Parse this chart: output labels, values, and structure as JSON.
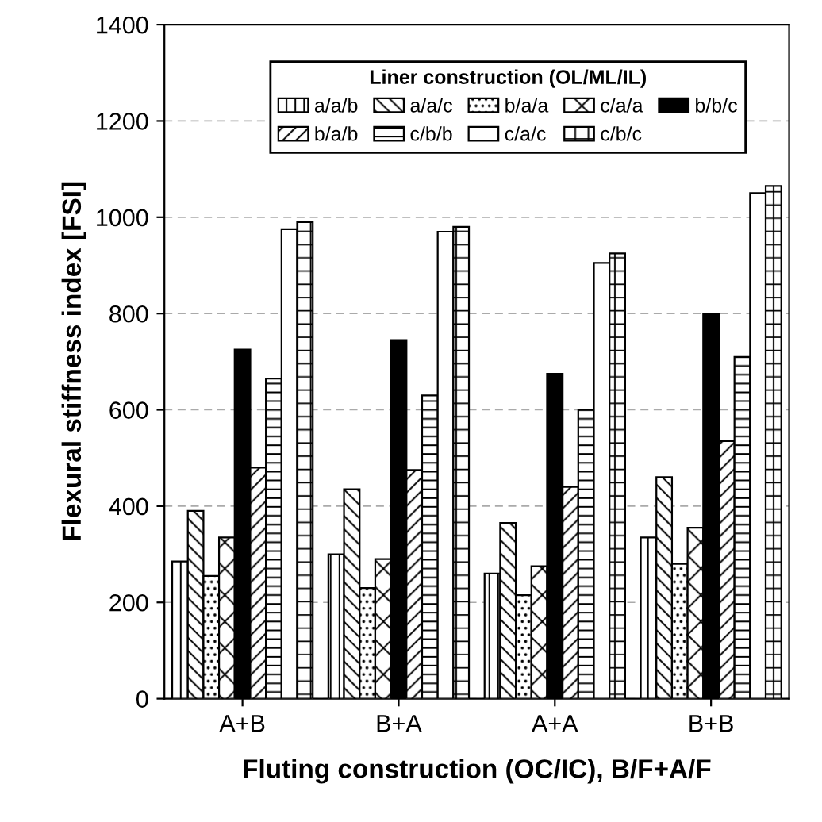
{
  "chart_data": {
    "type": "bar",
    "xlabel": "Fluting construction (OC/IC), B/F+A/F",
    "ylabel": "Flexural stiffness index [FSI]",
    "legend_title": "Liner construction (OL/ML/IL)",
    "categories": [
      "A+B",
      "B+A",
      "A+A",
      "B+B"
    ],
    "series": [
      {
        "name": "a/a/b",
        "color": "#000000",
        "values": [
          285,
          300,
          260,
          335
        ]
      },
      {
        "name": "a/a/c",
        "color": "#000000",
        "values": [
          390,
          435,
          365,
          460
        ]
      },
      {
        "name": "b/a/a",
        "color": "#000000",
        "values": [
          255,
          230,
          215,
          280
        ]
      },
      {
        "name": "c/a/a",
        "color": "#000000",
        "values": [
          335,
          290,
          275,
          355
        ]
      },
      {
        "name": "b/b/c",
        "color": "#000000",
        "values": [
          725,
          745,
          675,
          800
        ]
      },
      {
        "name": "b/a/b",
        "color": "#000000",
        "values": [
          480,
          475,
          440,
          535
        ]
      },
      {
        "name": "c/b/b",
        "color": "#000000",
        "values": [
          665,
          630,
          600,
          710
        ]
      },
      {
        "name": "c/a/c",
        "color": "#ffffff",
        "values": [
          975,
          970,
          905,
          1050
        ]
      },
      {
        "name": "c/b/c",
        "color": "#000000",
        "values": [
          990,
          980,
          925,
          1065
        ]
      }
    ],
    "ylim": [
      0,
      1400
    ],
    "yticks": [
      0,
      200,
      400,
      600,
      800,
      1000,
      1200,
      1400
    ],
    "grid": "y",
    "legend": "top"
  }
}
